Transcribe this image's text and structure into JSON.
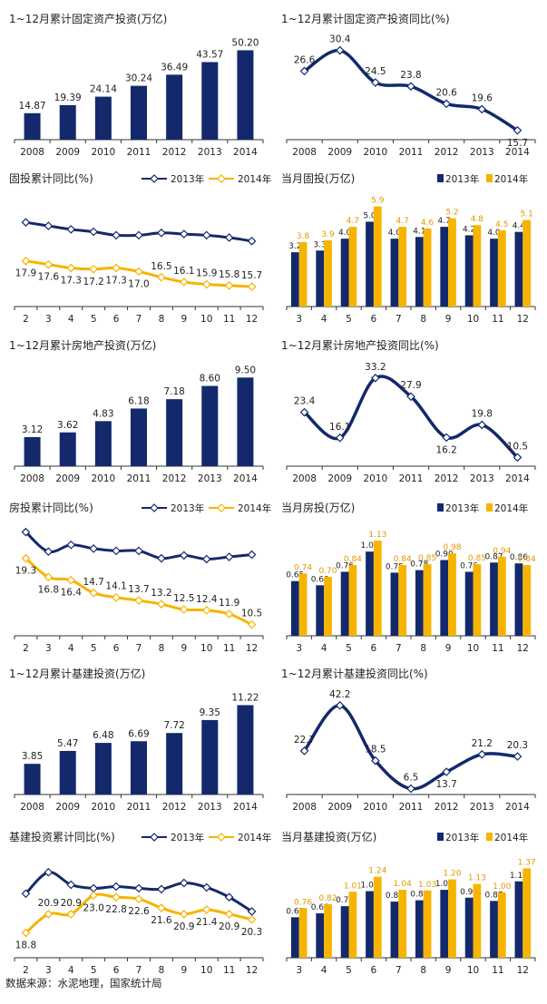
{
  "colors": {
    "navy": "#13296b",
    "gold": "#f6b400",
    "axis": "#333333",
    "text": "#222222"
  },
  "footer": "数据来源：水泥地理，国家统计局",
  "chart_data": [
    {
      "id": "fai-cum",
      "type": "bar",
      "title": "1~12月累计固定资产投资(万亿)",
      "categories": [
        "2008",
        "2009",
        "2010",
        "2011",
        "2012",
        "2013",
        "2014"
      ],
      "values": [
        14.87,
        19.39,
        24.14,
        30.24,
        36.49,
        43.57,
        50.2
      ],
      "value_labels": [
        "14.87",
        "19.39",
        "24.14",
        "30.24",
        "36.49",
        "43.57",
        "50.20"
      ],
      "ylim": [
        0,
        55
      ],
      "color": "#13296b"
    },
    {
      "id": "fai-yoy",
      "type": "line",
      "title": "1~12月累计固定资产投资同比(%)",
      "categories": [
        "2008",
        "2009",
        "2010",
        "2011",
        "2012",
        "2013",
        "2014"
      ],
      "values": [
        26.6,
        30.4,
        24.5,
        23.8,
        20.6,
        19.6,
        15.7
      ],
      "value_labels": [
        "26.6",
        "30.4",
        "24.5",
        "23.8",
        "20.6",
        "19.6",
        "15.7"
      ],
      "ylim": [
        14,
        32
      ]
    },
    {
      "id": "fai-ytd",
      "type": "line",
      "title": "固投累计同比(%)",
      "categories": [
        "2",
        "3",
        "4",
        "5",
        "6",
        "7",
        "8",
        "9",
        "10",
        "11",
        "12"
      ],
      "ylim": [
        14,
        23
      ],
      "series": [
        {
          "name": "2013年",
          "values": [
            21.2,
            20.9,
            20.6,
            20.4,
            20.1,
            20.1,
            20.3,
            20.2,
            20.1,
            19.9,
            19.6
          ],
          "value_labels": []
        },
        {
          "name": "2014年",
          "values": [
            17.9,
            17.6,
            17.3,
            17.2,
            17.3,
            17.0,
            16.5,
            16.1,
            15.9,
            15.8,
            15.7
          ],
          "value_labels": [
            "17.9",
            "17.6",
            "17.3",
            "17.2",
            "17.3",
            "17.0",
            "16.5",
            "16.1",
            "15.9",
            "15.8",
            "15.7"
          ]
        }
      ]
    },
    {
      "id": "fai-month",
      "type": "bar",
      "title": "当月固投(万亿)",
      "categories": [
        "3",
        "4",
        "5",
        "6",
        "7",
        "8",
        "9",
        "10",
        "11",
        "12"
      ],
      "ylim": [
        0,
        6.2
      ],
      "series": [
        {
          "name": "2013年",
          "values": [
            3.2,
            3.3,
            4.0,
            5.0,
            4.0,
            4.1,
            4.7,
            4.2,
            4.0,
            4.4
          ],
          "value_labels": [
            "3.2",
            "3.3",
            "4.0",
            "5.0",
            "4.0",
            "4.1",
            "4.7",
            "4.2",
            "4.0",
            "4.4"
          ]
        },
        {
          "name": "2014年",
          "values": [
            3.8,
            3.9,
            4.7,
            5.9,
            4.7,
            4.6,
            5.2,
            4.8,
            4.5,
            5.1
          ],
          "value_labels": [
            "3.8",
            "3.9",
            "4.7",
            "5.9",
            "4.7",
            "4.6",
            "5.2",
            "4.8",
            "4.5",
            "5.1"
          ]
        }
      ]
    },
    {
      "id": "re-cum",
      "type": "bar",
      "title": "1~12月累计房地产投资(万亿)",
      "categories": [
        "2008",
        "2009",
        "2010",
        "2011",
        "2012",
        "2013",
        "2014"
      ],
      "values": [
        3.12,
        3.62,
        4.83,
        6.18,
        7.18,
        8.6,
        9.5
      ],
      "value_labels": [
        "3.12",
        "3.62",
        "4.83",
        "6.18",
        "7.18",
        "8.60",
        "9.50"
      ],
      "ylim": [
        0,
        10.5
      ],
      "color": "#13296b"
    },
    {
      "id": "re-yoy",
      "type": "line",
      "title": "1~12月累计房地产投资同比(%)",
      "categories": [
        "2008",
        "2009",
        "2010",
        "2011",
        "2012",
        "2013",
        "2014"
      ],
      "values": [
        23.4,
        16.1,
        33.2,
        27.9,
        16.2,
        19.8,
        10.5
      ],
      "value_labels": [
        "23.4",
        "16.1",
        "33.2",
        "27.9",
        "16.2",
        "19.8",
        "10.5"
      ],
      "ylim": [
        8,
        36
      ]
    },
    {
      "id": "re-ytd",
      "type": "line",
      "title": "房投累计同比(%)",
      "categories": [
        "2",
        "3",
        "4",
        "5",
        "6",
        "7",
        "8",
        "9",
        "10",
        "11",
        "12"
      ],
      "ylim": [
        9,
        23
      ],
      "series": [
        {
          "name": "2013年",
          "values": [
            22.8,
            20.2,
            21.1,
            20.6,
            20.3,
            20.3,
            19.3,
            19.7,
            19.2,
            19.5,
            19.8
          ],
          "value_labels": []
        },
        {
          "name": "2014年",
          "values": [
            19.3,
            16.8,
            16.4,
            14.7,
            14.1,
            13.7,
            13.2,
            12.5,
            12.4,
            11.9,
            10.5
          ],
          "value_labels": [
            "19.3",
            "16.8",
            "16.4",
            "14.7",
            "14.1",
            "13.7",
            "13.2",
            "12.5",
            "12.4",
            "11.9",
            "10.5"
          ]
        }
      ]
    },
    {
      "id": "re-month",
      "type": "bar",
      "title": "当月房投(万亿)",
      "categories": [
        "3",
        "4",
        "5",
        "6",
        "7",
        "8",
        "9",
        "10",
        "11",
        "12"
      ],
      "ylim": [
        0,
        1.25
      ],
      "series": [
        {
          "name": "2013年",
          "values": [
            0.65,
            0.6,
            0.76,
            1.0,
            0.75,
            0.78,
            0.9,
            0.76,
            0.87,
            0.86
          ],
          "value_labels": [
            "0.65",
            "0.60",
            "0.76",
            "1.00",
            "0.75",
            "0.78",
            "0.90",
            "0.76",
            "0.87",
            "0.86"
          ]
        },
        {
          "name": "2014年",
          "values": [
            0.74,
            0.7,
            0.84,
            1.13,
            0.84,
            0.85,
            0.98,
            0.85,
            0.94,
            0.84
          ],
          "value_labels": [
            "0.74",
            "0.70",
            "0.84",
            "1.13",
            "0.84",
            "0.85",
            "0.98",
            "0.85",
            "0.94",
            "0.84"
          ]
        }
      ]
    },
    {
      "id": "infra-cum",
      "type": "bar",
      "title": "1~12月累计基建投资(万亿)",
      "categories": [
        "2008",
        "2009",
        "2010",
        "2011",
        "2012",
        "2013",
        "2014"
      ],
      "values": [
        3.85,
        5.47,
        6.48,
        6.69,
        7.72,
        9.35,
        11.22
      ],
      "value_labels": [
        "3.85",
        "5.47",
        "6.48",
        "6.69",
        "7.72",
        "9.35",
        "11.22"
      ],
      "ylim": [
        0,
        12.3
      ],
      "color": "#13296b"
    },
    {
      "id": "infra-yoy",
      "type": "line",
      "title": "1~12月累计基建投资同比(%)",
      "categories": [
        "2008",
        "2009",
        "2010",
        "2011",
        "2012",
        "2013",
        "2014"
      ],
      "values": [
        22.7,
        42.2,
        18.5,
        6.5,
        13.7,
        21.2,
        20.3
      ],
      "value_labels": [
        "22.7",
        "42.2",
        "18.5",
        "6.5",
        "13.7",
        "21.2",
        "20.3"
      ],
      "ylim": [
        4,
        46
      ]
    },
    {
      "id": "infra-ytd",
      "type": "line",
      "title": "基建投资累计同比(%)",
      "categories": [
        "2",
        "3",
        "4",
        "5",
        "6",
        "7",
        "8",
        "9",
        "10",
        "11",
        "12"
      ],
      "ylim": [
        16,
        27
      ],
      "series": [
        {
          "name": "2013年",
          "values": [
            23.2,
            25.6,
            24.2,
            23.8,
            24.0,
            23.8,
            23.7,
            24.4,
            23.9,
            22.8,
            21.2
          ],
          "value_labels": []
        },
        {
          "name": "2014年",
          "values": [
            18.8,
            20.9,
            20.9,
            23.0,
            22.8,
            22.6,
            21.6,
            20.9,
            21.4,
            20.9,
            20.3
          ],
          "value_labels": [
            "18.8",
            "20.9",
            "20.9",
            "23.0",
            "22.8",
            "22.6",
            "21.6",
            "20.9",
            "21.4",
            "20.9",
            "20.3"
          ]
        }
      ]
    },
    {
      "id": "infra-month",
      "type": "bar",
      "title": "当月基建投资(万亿)",
      "categories": [
        "3",
        "4",
        "5",
        "6",
        "7",
        "8",
        "9",
        "10",
        "11",
        "12"
      ],
      "ylim": [
        0,
        1.5
      ],
      "series": [
        {
          "name": "2013年",
          "values": [
            0.62,
            0.68,
            0.79,
            1.02,
            0.86,
            0.88,
            1.04,
            0.92,
            0.87,
            1.17
          ],
          "value_labels": [
            "0.62",
            "0.68",
            "0.79",
            "1.02",
            "0.86",
            "0.88",
            "1.04",
            "0.92",
            "0.87",
            "1.17"
          ]
        },
        {
          "name": "2014年",
          "values": [
            0.76,
            0.82,
            1.01,
            1.24,
            1.04,
            1.03,
            1.2,
            1.13,
            1.0,
            1.37
          ],
          "value_labels": [
            "0.76",
            "0.82",
            "1.01",
            "1.24",
            "1.04",
            "1.03",
            "1.20",
            "1.13",
            "1.00",
            "1.37"
          ]
        }
      ]
    }
  ]
}
